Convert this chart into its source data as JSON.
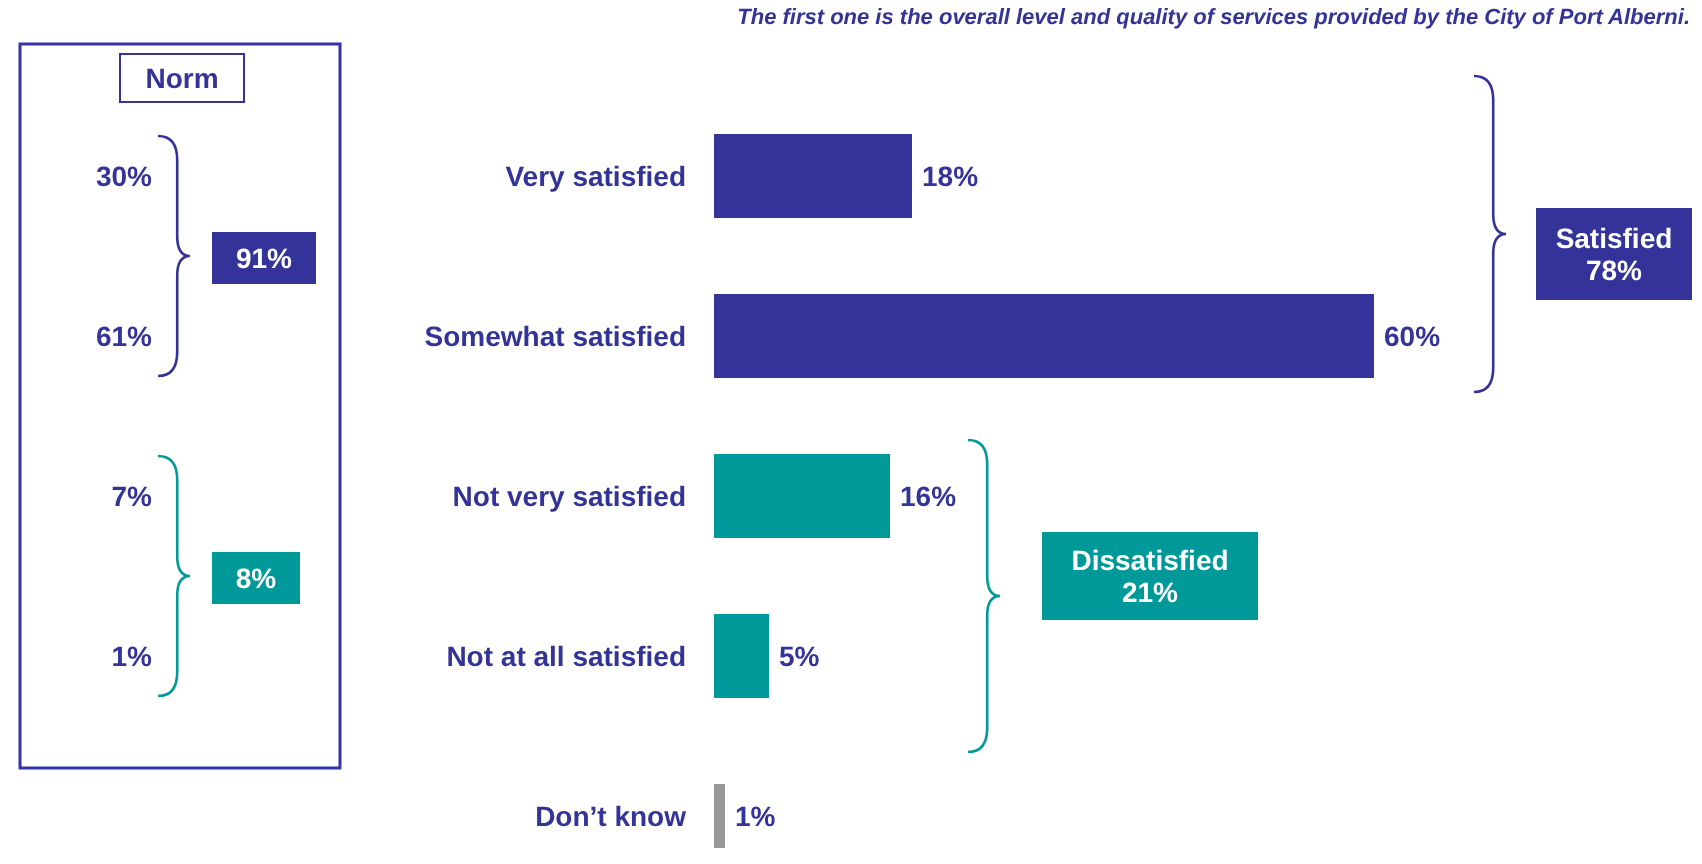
{
  "chart_data": {
    "type": "bar",
    "orientation": "horizontal",
    "title": "The first one is the overall level and quality of services provided by the City of Port Alberni.",
    "categories": [
      "Very satisfied",
      "Somewhat satisfied",
      "Not very satisfied",
      "Not at all satisfied",
      "Don’t know"
    ],
    "values": [
      18,
      60,
      16,
      5,
      1
    ],
    "value_labels": [
      "18%",
      "60%",
      "16%",
      "5%",
      "1%"
    ],
    "colors": [
      "#333399",
      "#333399",
      "#009999",
      "#009999",
      "#999999"
    ],
    "annotations": [
      "Norm",
      "30%",
      "61%",
      "91%",
      "7%",
      "1%",
      "8%",
      "Satisfied\n78%",
      "Dissatisfied\n21%"
    ]
  }
}
